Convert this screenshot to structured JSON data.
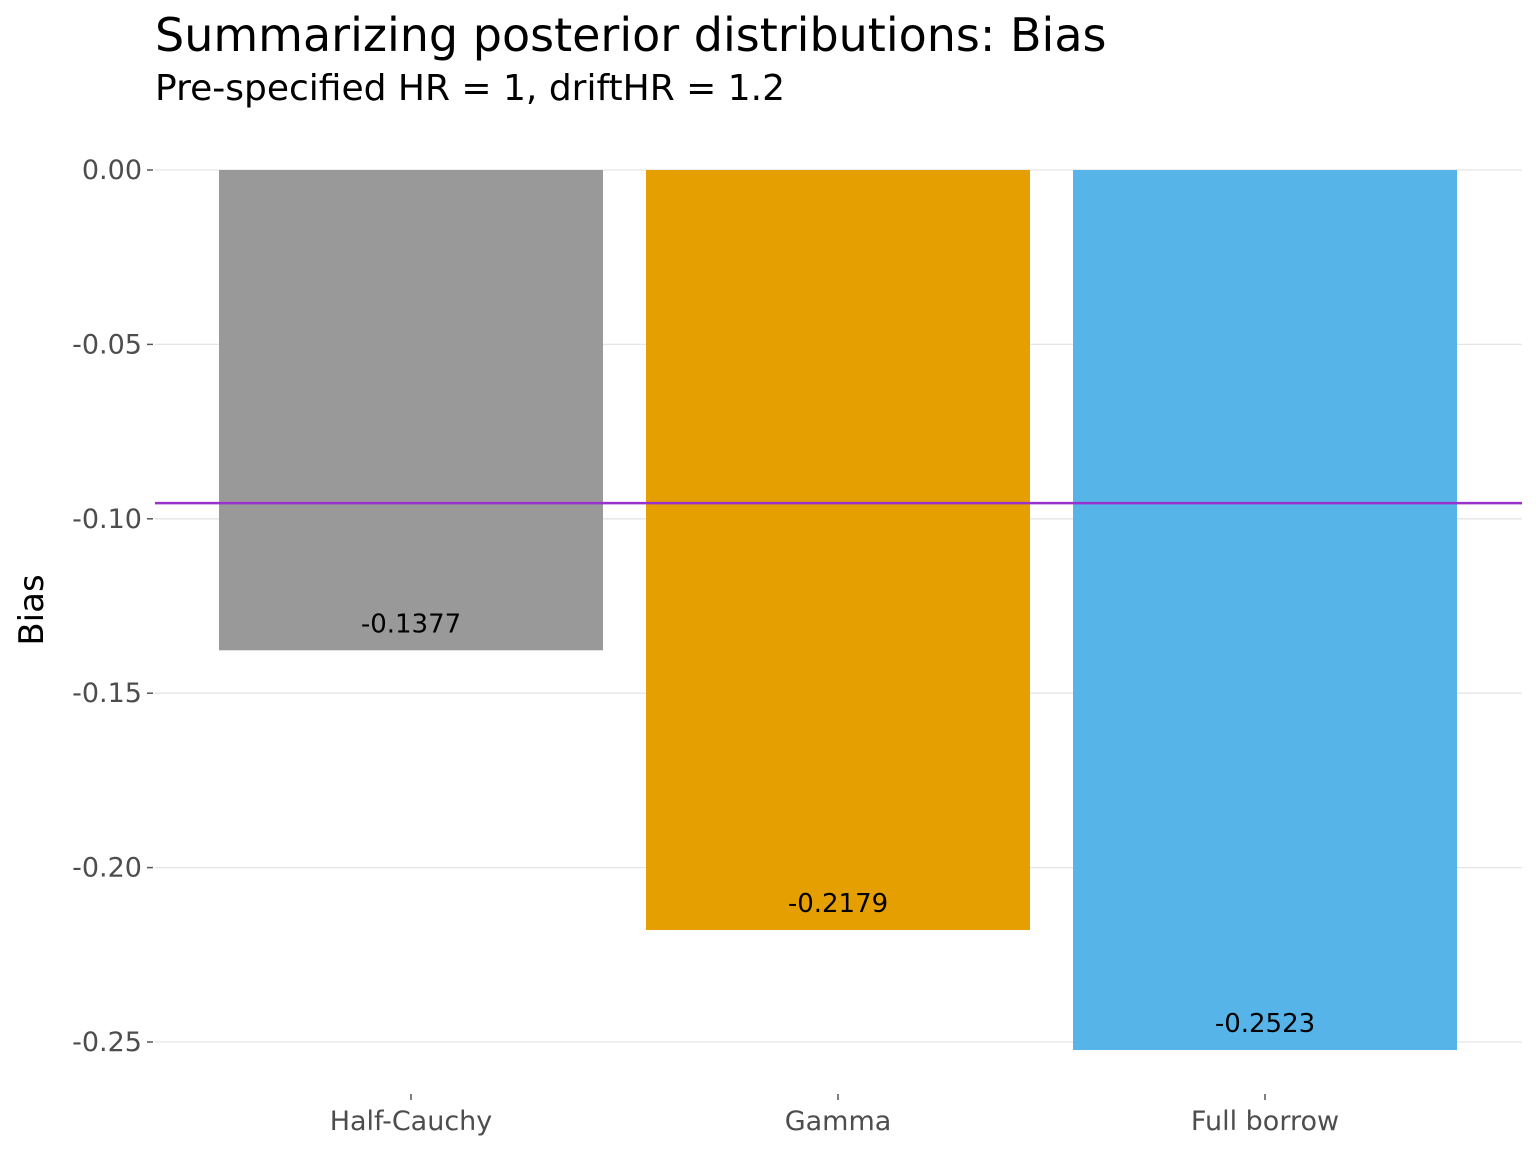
{
  "title": "Summarizing posterior distributions: Bias",
  "subtitle": "Pre-specified HR = 1, driftHR = 1.2",
  "chart_data": {
    "type": "bar",
    "categories": [
      "Half-Cauchy",
      "Gamma",
      "Full borrow"
    ],
    "values": [
      -0.1377,
      -0.2179,
      -0.2523
    ],
    "value_labels": [
      "-0.1377",
      "-0.2179",
      "-0.2523"
    ],
    "colors": [
      "#999999",
      "#E69F00",
      "#56B4E9"
    ],
    "ylabel": "Bias",
    "xlabel": "",
    "yticks": [
      0.0,
      -0.05,
      -0.1,
      -0.15,
      -0.2,
      -0.25
    ],
    "ytick_labels": [
      "0.00",
      "-0.05",
      "-0.10",
      "-0.15",
      "-0.20",
      "-0.25"
    ],
    "ylim": [
      -0.2623,
      0.0
    ],
    "reference_line": {
      "value": -0.0955,
      "color": "#9932CC"
    },
    "grid": true,
    "legend": "none"
  }
}
